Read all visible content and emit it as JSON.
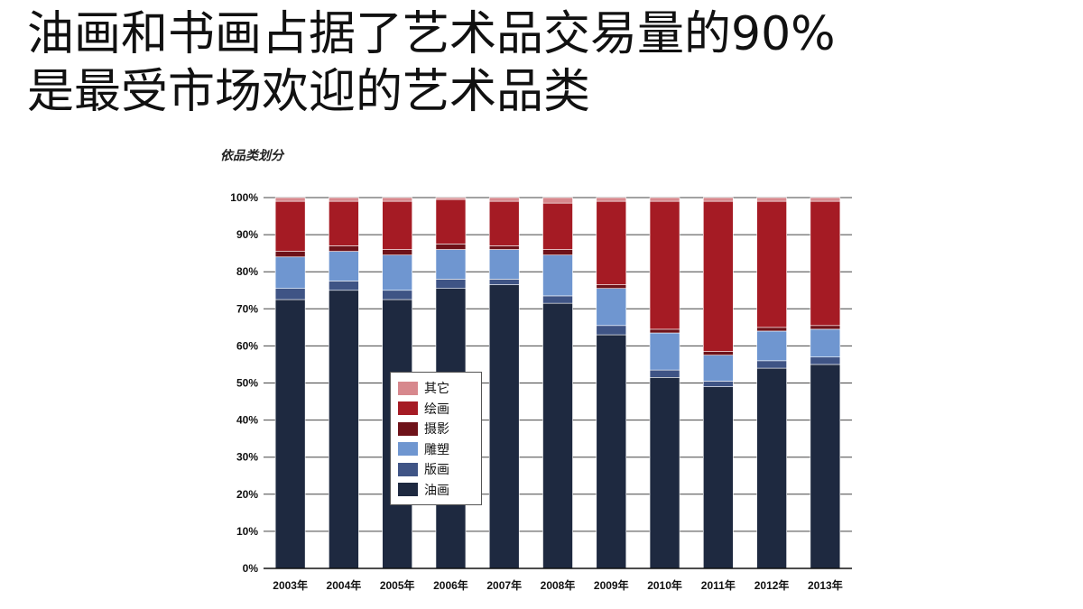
{
  "headline": {
    "line1": "油画和书画占据了艺术品交易量的90%",
    "line2": "是最受市场欢迎的艺术品类"
  },
  "chart_data": {
    "type": "bar",
    "stacked": true,
    "title": "依品类划分",
    "categories": [
      "2003年",
      "2004年",
      "2005年",
      "2006年",
      "2007年",
      "2008年",
      "2009年",
      "2010年",
      "2011年",
      "2012年",
      "2013年"
    ],
    "ylim": [
      0,
      100
    ],
    "yticks": [
      "0%",
      "10%",
      "20%",
      "30%",
      "40%",
      "50%",
      "60%",
      "70%",
      "80%",
      "90%",
      "100%"
    ],
    "grid": true,
    "legend_position": "center-left",
    "series": [
      {
        "name": "油画",
        "color": "#1e2940",
        "values": [
          72.5,
          75,
          72.5,
          75.5,
          76.5,
          71.5,
          63,
          51.5,
          49,
          54,
          55
        ]
      },
      {
        "name": "版画",
        "color": "#3f5485",
        "values": [
          3,
          2.5,
          2.5,
          2.5,
          1.5,
          2,
          2.5,
          2,
          1.5,
          2,
          2
        ]
      },
      {
        "name": "雕塑",
        "color": "#6f96d0",
        "values": [
          8.5,
          8,
          9.5,
          8,
          8,
          11,
          10,
          10,
          7,
          8,
          7.5
        ]
      },
      {
        "name": "摄影",
        "color": "#6e1219",
        "values": [
          1.5,
          1.5,
          1.5,
          1.5,
          1,
          1.5,
          1,
          1,
          1,
          1,
          1
        ]
      },
      {
        "name": "绘画",
        "color": "#a51b24",
        "values": [
          13.5,
          12,
          13,
          12,
          12,
          12.5,
          22.5,
          34.5,
          40.5,
          34,
          33.5
        ]
      },
      {
        "name": "其它",
        "color": "#d7888d",
        "values": [
          1,
          1,
          1,
          0.5,
          1,
          1.5,
          1,
          1,
          1,
          1,
          1
        ]
      }
    ]
  }
}
